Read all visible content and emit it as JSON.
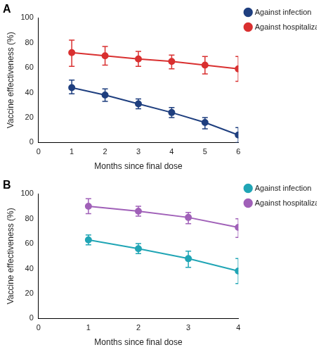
{
  "chart_data": [
    {
      "type": "line",
      "title": "A",
      "x_label": "Months since final dose",
      "y_label": "Vaccine effectiveness (%)",
      "x": [
        1,
        2,
        3,
        4,
        5,
        6
      ],
      "series": [
        {
          "name": "Against infection",
          "color": "#1f3f7f",
          "marker": "circle",
          "line_style": "solid",
          "values": [
            44,
            38,
            31,
            24,
            16,
            6
          ],
          "ci": [
            [
              39,
              50
            ],
            [
              33,
              43
            ],
            [
              27,
              35
            ],
            [
              20,
              28
            ],
            [
              11,
              20
            ],
            [
              0,
              12
            ]
          ]
        },
        {
          "name": "Against hospitalization",
          "color": "#d93030",
          "marker": "circle",
          "line_style": "solid",
          "values": [
            72,
            69.5,
            67,
            65,
            62,
            59
          ],
          "ci": [
            [
              61,
              82
            ],
            [
              62,
              77
            ],
            [
              61,
              73
            ],
            [
              59,
              70
            ],
            [
              55,
              69
            ],
            [
              49,
              69
            ]
          ]
        }
      ],
      "xlim": [
        0,
        6
      ],
      "xticks": [
        0,
        1,
        2,
        3,
        4,
        5,
        6
      ],
      "ylim": [
        0,
        100
      ],
      "yticks": [
        0,
        20,
        40,
        60,
        80,
        100
      ],
      "grid": false,
      "legend": "right"
    },
    {
      "type": "line",
      "title": "B",
      "x_label": "Months since final dose",
      "y_label": "Vaccine effectiveness (%)",
      "x": [
        1,
        2,
        3,
        4
      ],
      "series": [
        {
          "name": "Against infection",
          "color": "#20a5b5",
          "marker": "circle",
          "line_style": "solid",
          "values": [
            63,
            56,
            48,
            38
          ],
          "ci": [
            [
              59,
              67
            ],
            [
              52,
              60
            ],
            [
              41,
              54
            ],
            [
              28,
              48
            ]
          ]
        },
        {
          "name": "Against hospitalization",
          "color": "#a060b8",
          "marker": "circle",
          "line_style": "solid",
          "values": [
            90,
            86,
            81,
            73
          ],
          "ci": [
            [
              84,
              96
            ],
            [
              82,
              90
            ],
            [
              76,
              85
            ],
            [
              65,
              80
            ]
          ]
        }
      ],
      "xlim": [
        0,
        4
      ],
      "xticks": [
        0,
        1,
        2,
        3,
        4
      ],
      "ylim": [
        0,
        100
      ],
      "yticks": [
        0,
        20,
        40,
        60,
        80,
        100
      ],
      "grid": false,
      "legend": "right"
    }
  ]
}
